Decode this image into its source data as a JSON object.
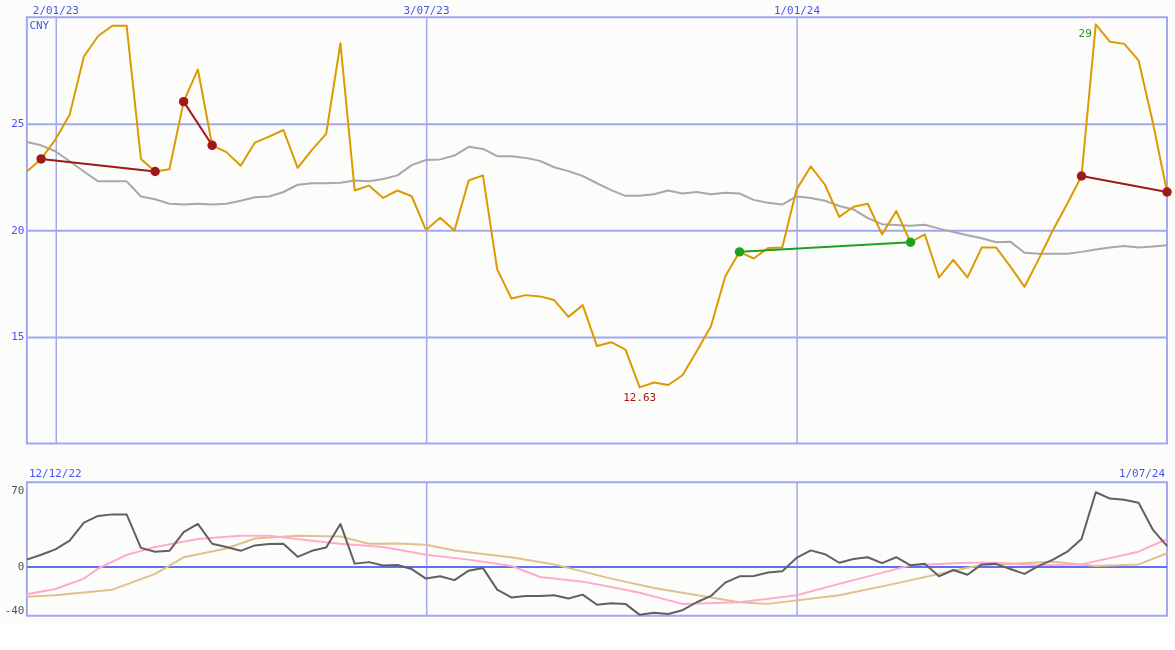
{
  "chart_data": [
    {
      "type": "line",
      "ylabel": "CNY",
      "x": [
        "2022-12-19",
        "2022-12-26",
        "2023-01-02",
        "2023-01-09",
        "2023-01-16",
        "2023-01-23",
        "2023-01-30",
        "2023-02-06",
        "2023-02-13",
        "2023-02-20",
        "2023-02-27",
        "2023-03-06",
        "2023-03-13",
        "2023-03-20",
        "2023-03-27",
        "2023-04-03",
        "2023-04-10",
        "2023-04-17",
        "2023-04-24",
        "2023-05-01",
        "2023-05-08",
        "2023-05-15",
        "2023-05-22",
        "2023-05-29",
        "2023-06-05",
        "2023-06-12",
        "2023-06-19",
        "2023-06-26",
        "2023-07-03",
        "2023-07-10",
        "2023-07-17",
        "2023-07-24",
        "2023-07-31",
        "2023-08-07",
        "2023-08-14",
        "2023-08-21",
        "2023-08-28",
        "2023-09-04",
        "2023-09-11",
        "2023-09-18",
        "2023-09-25",
        "2023-10-02",
        "2023-10-09",
        "2023-10-16",
        "2023-10-23",
        "2023-10-30",
        "2023-11-06",
        "2023-11-13",
        "2023-11-20",
        "2023-11-27",
        "2023-12-04",
        "2023-12-11",
        "2023-12-18",
        "2023-12-25",
        "2024-01-01",
        "2024-01-08",
        "2024-01-15",
        "2024-01-22",
        "2024-01-29",
        "2024-02-05",
        "2024-02-12",
        "2024-02-19",
        "2024-02-26",
        "2024-03-04",
        "2024-03-11",
        "2024-03-18",
        "2024-03-25",
        "2024-04-01",
        "2024-04-08",
        "2024-04-15",
        "2024-04-22",
        "2024-04-29",
        "2024-05-06",
        "2024-05-13",
        "2024-05-20",
        "2024-05-27",
        "2024-06-03",
        "2024-06-10",
        "2024-06-17",
        "2024-06-24",
        "2024-07-01"
      ],
      "series": [
        {
          "color": "#a8a8a8",
          "values": [
            24.15,
            23.99,
            23.71,
            23.24,
            22.76,
            22.3,
            22.3,
            22.3,
            21.59,
            21.46,
            21.25,
            21.21,
            21.25,
            21.21,
            21.25,
            21.39,
            21.55,
            21.59,
            21.8,
            22.14,
            22.21,
            22.21,
            22.23,
            22.34,
            22.3,
            22.41,
            22.58,
            23.06,
            23.3,
            23.33,
            23.51,
            23.92,
            23.82,
            23.48,
            23.48,
            23.4,
            23.26,
            22.96,
            22.78,
            22.55,
            22.21,
            21.89,
            21.62,
            21.62,
            21.69,
            21.87,
            21.73,
            21.8,
            21.69,
            21.76,
            21.73,
            21.43,
            21.29,
            21.21,
            21.59,
            21.52,
            21.39,
            21.14,
            20.98,
            20.57,
            20.29,
            20.25,
            20.22,
            20.26,
            20.08,
            19.92,
            19.77,
            19.63,
            19.44,
            19.47,
            18.95,
            18.9,
            18.9,
            18.9,
            18.99,
            19.1,
            19.2,
            19.26,
            19.2,
            19.24,
            19.3
          ]
        },
        {
          "color": "#dd9900",
          "values": [
            22.76,
            23.35,
            24.26,
            25.42,
            28.16,
            29.12,
            29.6,
            29.6,
            23.35,
            22.76,
            22.87,
            26.04,
            27.55,
            23.99,
            23.67,
            23.03,
            24.12,
            24.4,
            24.71,
            22.93,
            23.78,
            24.53,
            28.78,
            21.87,
            22.1,
            21.52,
            21.87,
            21.6,
            20.02,
            20.59,
            19.99,
            22.34,
            22.58,
            18.17,
            16.8,
            16.96,
            16.9,
            16.73,
            15.94,
            16.49,
            14.57,
            14.75,
            14.4,
            12.63,
            12.86,
            12.74,
            13.2,
            14.33,
            15.5,
            17.83,
            18.99,
            18.68,
            19.17,
            19.2,
            21.91,
            23.0,
            22.14,
            20.63,
            21.11,
            21.25,
            19.81,
            20.91,
            19.44,
            19.81,
            17.79,
            18.62,
            17.79,
            19.2,
            19.2,
            18.31,
            17.35,
            18.65,
            20.02,
            21.25,
            22.55,
            29.67,
            28.85,
            28.75,
            27.98,
            25.07,
            21.8
          ]
        },
        {
          "type": "line",
          "marker": "circle",
          "color": "#a01818",
          "x": [
            "2022-12-26",
            "2023-02-20"
          ],
          "values": [
            23.35,
            22.76
          ]
        },
        {
          "type": "line",
          "marker": "circle",
          "color": "#a01818",
          "x": [
            "2023-03-06",
            "2023-03-20"
          ],
          "values": [
            26.04,
            23.99
          ]
        },
        {
          "type": "line",
          "marker": "circle",
          "color": "#20a020",
          "x": [
            "2023-12-04",
            "2024-02-26"
          ],
          "values": [
            18.99,
            19.44
          ]
        },
        {
          "type": "line",
          "marker": "circle",
          "color": "#a01818",
          "x": [
            "2024-05-20",
            "2024-07-01"
          ],
          "values": [
            22.55,
            21.8
          ]
        }
      ],
      "xlim": [
        "2022-12-19",
        "2024-07-01"
      ],
      "xticks": [
        {
          "value": "2023-01-02",
          "label": "2/01/23"
        },
        {
          "value": "2023-07-03",
          "label": "3/07/23"
        },
        {
          "value": "2024-01-01",
          "label": "1/01/24"
        }
      ],
      "ylim": [
        10,
        30
      ],
      "yticks": [
        15,
        20,
        25
      ],
      "grid": true,
      "annotations": [
        {
          "text": "12.63",
          "x": "2023-10-16",
          "y": 12.63
        },
        {
          "text": "29",
          "x": "2024-05-27",
          "y": 29.67
        }
      ]
    },
    {
      "type": "line",
      "x": [
        "2022-12-19",
        "2022-12-26",
        "2023-01-02",
        "2023-01-09",
        "2023-01-16",
        "2023-01-23",
        "2023-01-30",
        "2023-02-06",
        "2023-02-13",
        "2023-02-20",
        "2023-02-27",
        "2023-03-06",
        "2023-03-13",
        "2023-03-20",
        "2023-03-27",
        "2023-04-03",
        "2023-04-10",
        "2023-04-17",
        "2023-04-24",
        "2023-05-01",
        "2023-05-08",
        "2023-05-15",
        "2023-05-22",
        "2023-05-29",
        "2023-06-05",
        "2023-06-12",
        "2023-06-19",
        "2023-06-26",
        "2023-07-03",
        "2023-07-10",
        "2023-07-17",
        "2023-07-24",
        "2023-07-31",
        "2023-08-07",
        "2023-08-14",
        "2023-08-21",
        "2023-08-28",
        "2023-09-04",
        "2023-09-11",
        "2023-09-18",
        "2023-09-25",
        "2023-10-02",
        "2023-10-09",
        "2023-10-16",
        "2023-10-23",
        "2023-10-30",
        "2023-11-06",
        "2023-11-13",
        "2023-11-20",
        "2023-11-27",
        "2023-12-04",
        "2023-12-11",
        "2023-12-18",
        "2023-12-25",
        "2024-01-01",
        "2024-01-08",
        "2024-01-15",
        "2024-01-22",
        "2024-01-29",
        "2024-02-05",
        "2024-02-12",
        "2024-02-19",
        "2024-02-26",
        "2024-03-04",
        "2024-03-11",
        "2024-03-18",
        "2024-03-25",
        "2024-04-01",
        "2024-04-08",
        "2024-04-15",
        "2024-04-22",
        "2024-04-29",
        "2024-05-06",
        "2024-05-13",
        "2024-05-20",
        "2024-05-27",
        "2024-06-03",
        "2024-06-10",
        "2024-06-17",
        "2024-06-24",
        "2024-07-01"
      ],
      "series": [
        {
          "color": "#e0c090",
          "x": [
            "2022-12-19",
            "2023-01-02",
            "2023-01-30",
            "2023-02-20",
            "2023-03-06",
            "2023-03-27",
            "2023-04-10",
            "2023-05-01",
            "2023-05-22",
            "2023-06-05",
            "2023-06-19",
            "2023-07-03",
            "2023-07-17",
            "2023-08-14",
            "2023-09-04",
            "2023-10-02",
            "2023-10-23",
            "2023-12-04",
            "2023-12-18",
            "2024-01-22",
            "2024-02-19",
            "2024-03-18",
            "2024-04-01",
            "2024-05-06",
            "2024-05-27",
            "2024-06-17",
            "2024-07-01"
          ],
          "values": [
            -27.6,
            -26.2,
            -21,
            -6.4,
            8.8,
            16.9,
            26.2,
            28.6,
            28,
            21.3,
            21.6,
            20.5,
            15.2,
            8.8,
            2.3,
            -10.8,
            -19.5,
            -32.6,
            -34.1,
            -26.2,
            -15.2,
            -3.5,
            1.7,
            4.7,
            0.9,
            2.3,
            12.6
          ]
        },
        {
          "color": "#ffaacc",
          "x": [
            "2022-12-19",
            "2023-01-02",
            "2023-01-16",
            "2023-01-23",
            "2023-02-06",
            "2023-02-20",
            "2023-03-13",
            "2023-04-03",
            "2023-04-17",
            "2023-05-08",
            "2023-05-22",
            "2023-06-12",
            "2023-07-03",
            "2023-07-24",
            "2023-08-14",
            "2023-08-28",
            "2023-09-18",
            "2023-10-02",
            "2023-10-16",
            "2023-11-06",
            "2023-12-04",
            "2024-01-01",
            "2024-01-29",
            "2024-02-26",
            "2024-03-25",
            "2024-04-08",
            "2024-04-29",
            "2024-05-20",
            "2024-06-17",
            "2024-07-01"
          ],
          "values": [
            -25.3,
            -20.4,
            -10.8,
            -1.5,
            11.1,
            18.4,
            25.7,
            28.6,
            28.6,
            24.2,
            21.3,
            18.4,
            11.1,
            6.7,
            0.9,
            -9.3,
            -13.6,
            -18.6,
            -23.9,
            -34.1,
            -32.6,
            -26.2,
            -12.2,
            1.4,
            3.8,
            3.8,
            1.4,
            2.3,
            14,
            25.7
          ]
        },
        {
          "color": "#606060",
          "values": [
            6.7,
            11.2,
            16.1,
            24.2,
            40.8,
            47,
            48.4,
            48.4,
            17.5,
            14,
            14.8,
            32,
            39.6,
            21.3,
            18.4,
            14.8,
            19.8,
            21,
            21.3,
            9.3,
            14.8,
            17.8,
            39.6,
            3,
            4.4,
            1.2,
            1.7,
            -2,
            -10.8,
            -8.7,
            -12.2,
            -3.5,
            -1.1,
            -21,
            -28.2,
            -26.8,
            -26.8,
            -26.2,
            -29.1,
            -25.6,
            -34.9,
            -33.5,
            -34.1,
            -44.2,
            -42.2,
            -43.5,
            -39.9,
            -32.6,
            -26.8,
            -14.5,
            -8.7,
            -8.4,
            -5.2,
            -4.1,
            8.2,
            15.2,
            11.7,
            3.8,
            7.3,
            8.9,
            3.5,
            8.9,
            1.5,
            2.8,
            -8.7,
            -2.9,
            -7.3,
            2.3,
            2.8,
            -2,
            -6.4,
            0.9,
            6.7,
            14,
            25.7,
            68.8,
            63,
            61.8,
            59.2,
            34.4,
            19.2
          ]
        }
      ],
      "xlim": [
        "2022-12-19",
        "2024-07-01"
      ],
      "xticks": [
        {
          "value": "2023-07-03",
          "label": null
        },
        {
          "value": "2024-01-01",
          "label": null
        }
      ],
      "ylim": [
        -45,
        78
      ],
      "yticks": [
        70,
        0,
        -40
      ],
      "grid": "x",
      "tick_labels": "y",
      "ref_lines": [
        {
          "axis": "y",
          "value": 0
        }
      ],
      "annotations": [
        "12/12/22",
        "1/07/24"
      ]
    }
  ]
}
